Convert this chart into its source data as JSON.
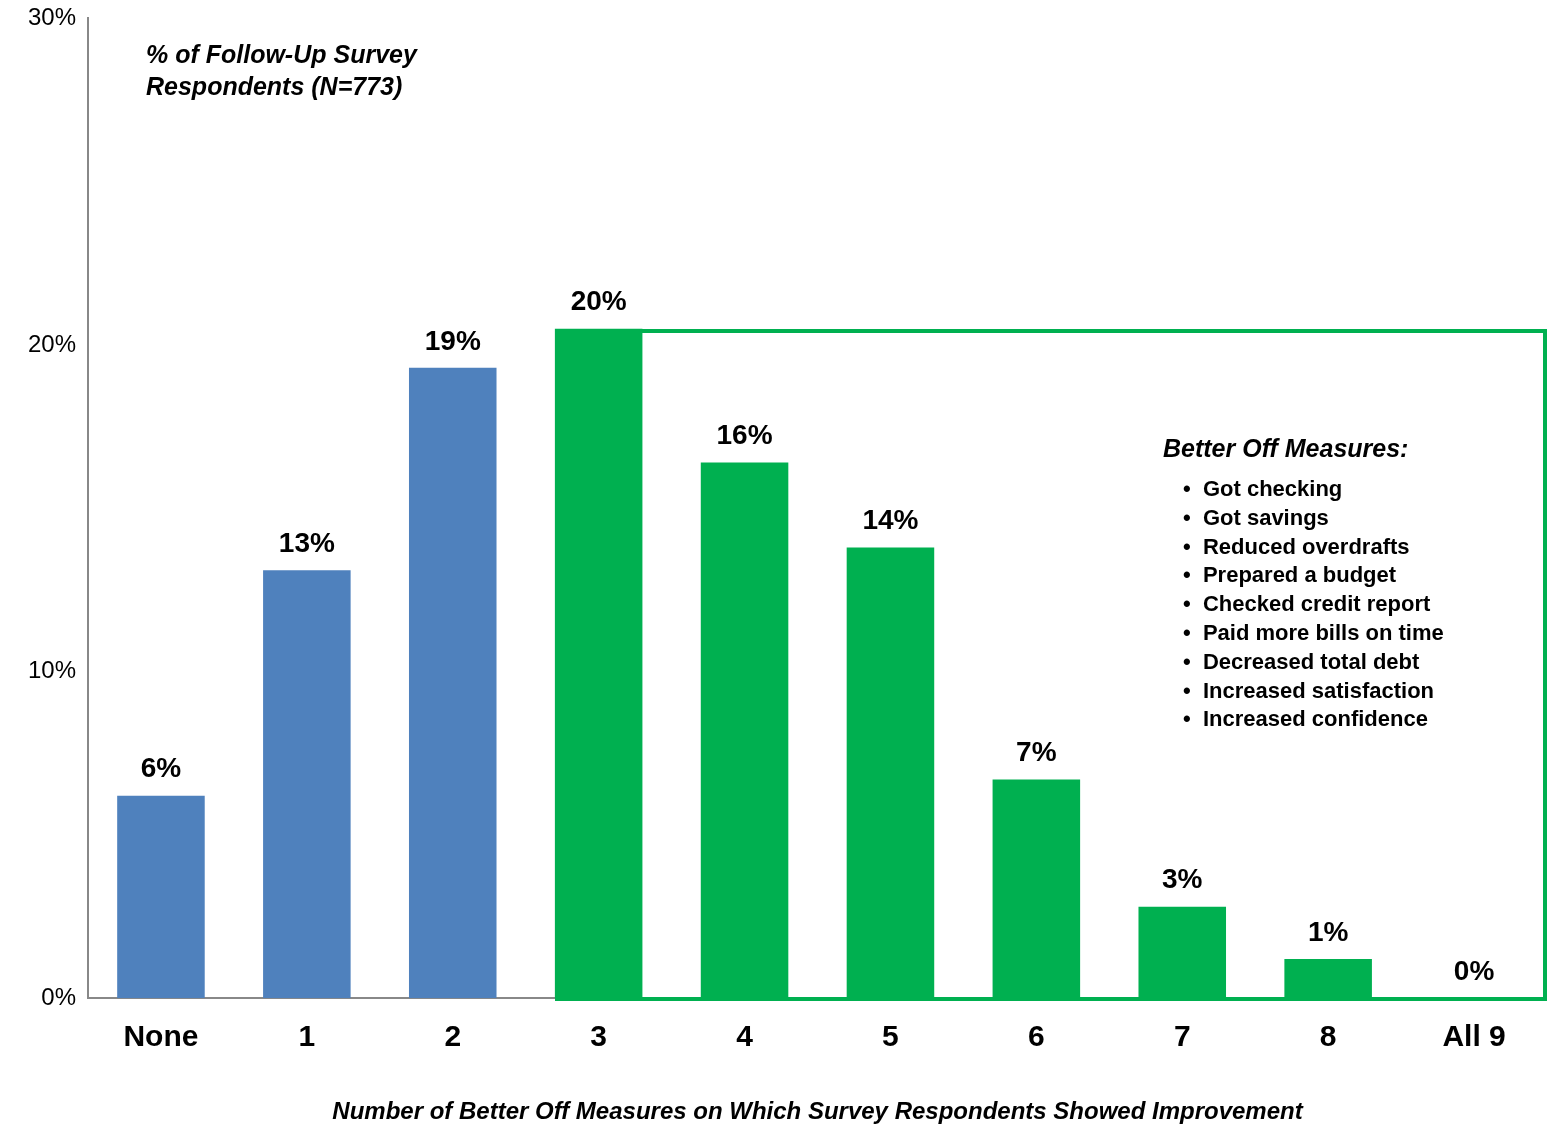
{
  "chart_data": {
    "type": "bar",
    "ylabel": "% of Follow-Up Survey Respondents (N=773)",
    "xlabel": "Number of Better Off Measures on Which Survey Respondents Showed Improvement",
    "categories": [
      "None",
      "1",
      "2",
      "3",
      "4",
      "5",
      "6",
      "7",
      "8",
      "All 9"
    ],
    "values": [
      6.2,
      13.1,
      19.3,
      20.5,
      16.4,
      13.8,
      6.7,
      2.8,
      1.2,
      0
    ],
    "colors": [
      "#4f81bd",
      "#4f81bd",
      "#4f81bd",
      "#00b050",
      "#00b050",
      "#00b050",
      "#00b050",
      "#00b050",
      "#00b050",
      "#00b050"
    ],
    "value_labels": [
      "6%",
      "13%",
      "19%",
      "20%",
      "16%",
      "14%",
      "7%",
      "3%",
      "1%",
      "0%"
    ],
    "ylim": [
      0,
      30
    ],
    "yticks": [
      {
        "value": 0,
        "label": "0%"
      },
      {
        "value": 10,
        "label": "10%"
      },
      {
        "value": 20,
        "label": "20%"
      },
      {
        "value": 30,
        "label": "30%"
      }
    ],
    "grid": false,
    "legend": false,
    "annotations": [
      "Better Off Measures:",
      "•  Got checking",
      "•  Got savings",
      "•  Reduced overdrafts",
      "•  Prepared a budget",
      "•  Checked credit report",
      "•  Paid more bills on time",
      "•  Decreased total debt",
      "•  Increased satisfaction",
      "•  Increased confidence"
    ]
  }
}
